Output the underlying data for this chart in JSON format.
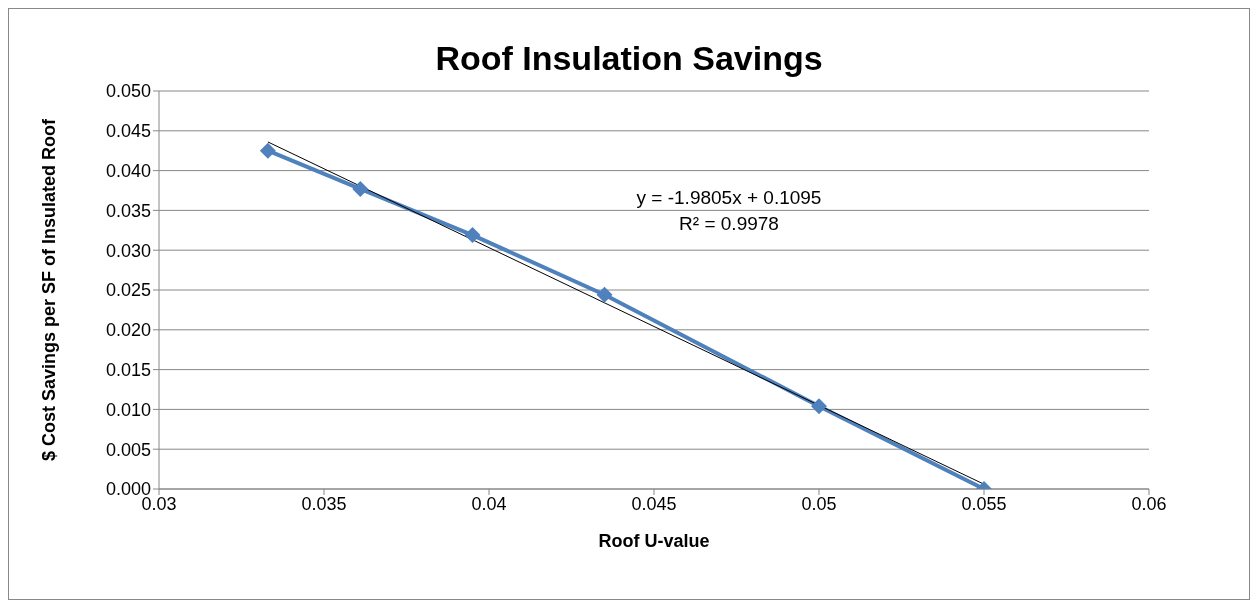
{
  "chart_data": {
    "type": "line",
    "title": "Roof Insulation Savings",
    "xlabel": "Roof U-value",
    "ylabel": "$ Cost Savings per SF of Insulated Roof",
    "series": [
      {
        "color": "#4f81bd",
        "x": [
          0.0333,
          0.0361,
          0.0395,
          0.0435,
          0.05,
          0.055
        ],
        "values": [
          0.0425,
          0.0377,
          0.0319,
          0.0244,
          0.0104,
          0
        ],
        "marker": "diamond"
      },
      {
        "type": "line",
        "color": "#000000",
        "x": [
          0.0333,
          0.055
        ],
        "values": [
          0.0436,
          0.0006
        ],
        "marker": "none"
      }
    ],
    "xlim": [
      0.03,
      0.06
    ],
    "xticks": [
      0.03,
      0.035,
      0.04,
      0.045,
      0.05,
      0.055,
      0.06
    ],
    "ylim": [
      0,
      0.05
    ],
    "yticks": [
      {
        "value": 0,
        "label": "0.000"
      },
      {
        "value": 0.005,
        "label": "0.005"
      },
      {
        "value": 0.01,
        "label": "0.010"
      },
      {
        "value": 0.015,
        "label": "0.015"
      },
      {
        "value": 0.02,
        "label": "0.020"
      },
      {
        "value": 0.025,
        "label": "0.025"
      },
      {
        "value": 0.03,
        "label": "0.030"
      },
      {
        "value": 0.035,
        "label": "0.035"
      },
      {
        "value": 0.04,
        "label": "0.040"
      },
      {
        "value": 0.045,
        "label": "0.045"
      },
      {
        "value": 0.05,
        "label": "0.050"
      }
    ],
    "grid": "y",
    "annotations": [
      "y = -1.9805x + 0.1095",
      "R² = 0.9978"
    ]
  }
}
